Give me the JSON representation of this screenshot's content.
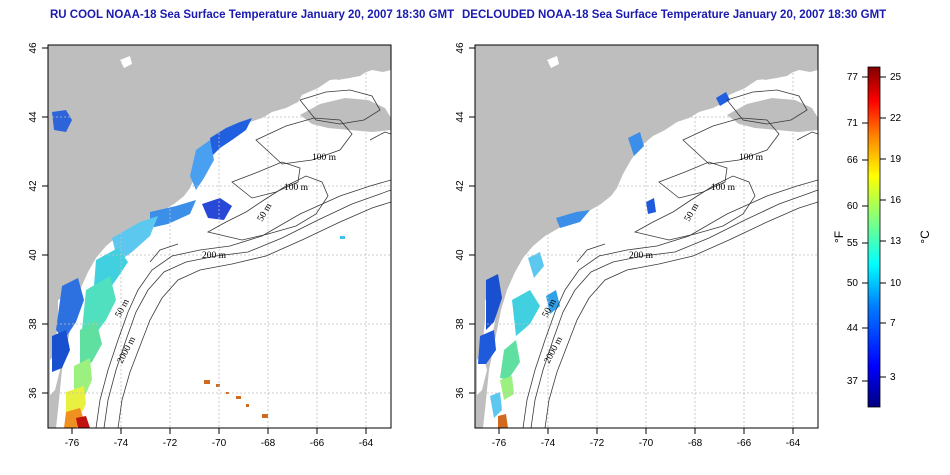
{
  "titles": {
    "left": "RU COOL NOAA-18 Sea Surface Temperature January 20, 2007 18:30 GMT",
    "right": "DECLOUDED NOAA-18 Sea Surface Temperature January 20, 2007 18:30 GMT"
  },
  "axes": {
    "lon_ticks": [
      "-76",
      "-74",
      "-72",
      "-70",
      "-68",
      "-66",
      "-64"
    ],
    "lat_ticks": [
      "46",
      "44",
      "42",
      "40",
      "38",
      "36"
    ]
  },
  "contour_labels": {
    "left": [
      "100 m",
      "100 m",
      "50 m",
      "200 m",
      "50 m",
      "2000 m"
    ],
    "right": [
      "100 m",
      "100 m",
      "50 m",
      "200 m",
      "50 m",
      "2000 m"
    ]
  },
  "colorbar": {
    "unit_f": "°F",
    "unit_c": "°C",
    "fahrenheit_ticks": [
      "77",
      "71",
      "66",
      "60",
      "55",
      "50",
      "44",
      "37"
    ],
    "celsius_ticks": [
      "25",
      "22",
      "19",
      "16",
      "13",
      "10",
      "7",
      "3"
    ],
    "colors": [
      "#00007f",
      "#0000ff",
      "#0080ff",
      "#00ffff",
      "#80ff80",
      "#ffff00",
      "#ff8000",
      "#ff0000",
      "#7f0000"
    ]
  },
  "colors": {
    "land": "#bebebe",
    "grid": "#bfbfbf",
    "contour": "#3a3a3a",
    "title": "#1a1ab0"
  }
}
